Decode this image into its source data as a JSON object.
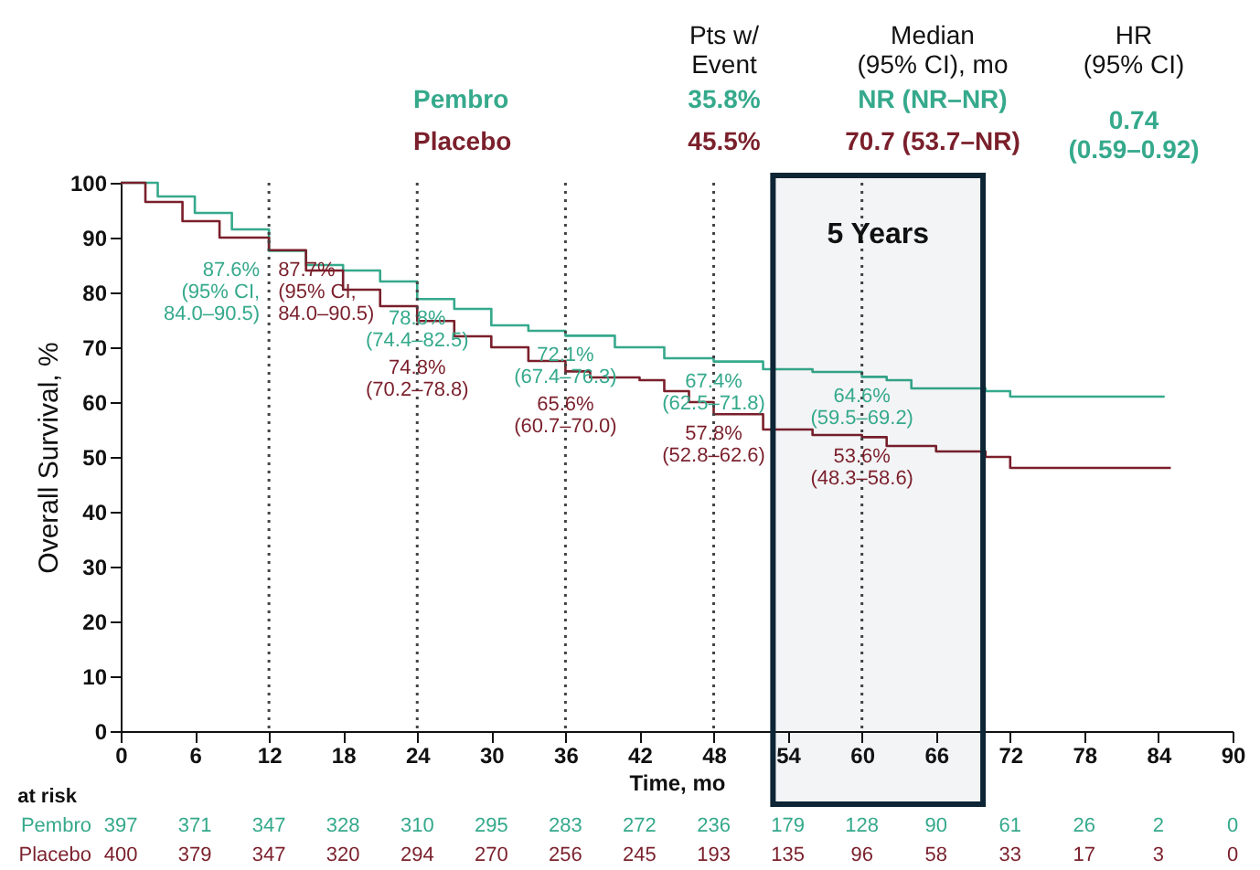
{
  "chart_data": {
    "type": "step",
    "xlabel": "Time, mo",
    "ylabel": "Overall Survival, %",
    "xlim": [
      0,
      90
    ],
    "xticks": [
      0,
      6,
      12,
      18,
      24,
      30,
      36,
      42,
      48,
      54,
      60,
      66,
      72,
      78,
      84,
      90
    ],
    "ylim": [
      0,
      100
    ],
    "yticks": [
      0,
      10,
      20,
      30,
      40,
      50,
      60,
      70,
      80,
      90,
      100
    ],
    "grid": false,
    "marker": "none",
    "line_style": "solid",
    "series": [
      {
        "name": "Pembro",
        "color": "#35a98c",
        "x": [
          0,
          3,
          6,
          9,
          12,
          15,
          18,
          21,
          24,
          27,
          30,
          33,
          36,
          40,
          44,
          48,
          52,
          56,
          60,
          62,
          64,
          70,
          72,
          84.5
        ],
        "values": [
          100,
          97.5,
          94.5,
          91.5,
          87.6,
          85,
          84,
          82,
          78.8,
          77,
          74,
          73,
          72.1,
          70,
          68,
          67.4,
          66,
          65.5,
          64.6,
          64,
          62.5,
          62,
          61,
          61
        ],
        "value_labels": [
          null,
          null,
          null,
          null,
          "87.6%\n(95% CI,\n84.0–90.5)",
          null,
          null,
          null,
          "78.8%\n(74.4–82.5)",
          null,
          null,
          null,
          "72.1%\n(67.4–76.3)",
          null,
          null,
          "67.4%\n(62.5–71.8)",
          null,
          null,
          "64.6%\n(59.5–69.2)",
          null,
          null,
          null,
          null,
          null
        ]
      },
      {
        "name": "Placebo",
        "color": "#7a1f2b",
        "x": [
          0,
          2,
          5,
          8,
          12,
          15,
          18,
          21,
          24,
          27,
          30,
          33,
          36,
          38,
          42,
          44,
          46,
          48,
          52,
          56,
          60,
          62,
          66,
          70,
          72,
          85
        ],
        "values": [
          100,
          96.5,
          93,
          90,
          87.7,
          84,
          80.5,
          77.5,
          74.8,
          72,
          70,
          67.5,
          65.6,
          64.5,
          64,
          62,
          60,
          57.8,
          55,
          54,
          53.6,
          52,
          51,
          50,
          48,
          48
        ],
        "value_labels": [
          null,
          null,
          null,
          null,
          "87.7%\n(95% CI,\n84.0–90.5)",
          null,
          null,
          null,
          "74.8%\n(70.2–78.8)",
          null,
          null,
          null,
          "65.6%\n(60.7–70.0)",
          null,
          null,
          null,
          null,
          "57.8%\n(52.8–62.6)",
          null,
          null,
          "53.6%\n(48.3–58.6)",
          null,
          null,
          null,
          null,
          null
        ]
      }
    ],
    "ref_lines": [
      {
        "axis": "x",
        "value": 12,
        "line_style": "dotted"
      },
      {
        "axis": "x",
        "value": 24,
        "line_style": "dotted"
      },
      {
        "axis": "x",
        "value": 36,
        "line_style": "dotted"
      },
      {
        "axis": "x",
        "value": 48,
        "line_style": "dotted"
      },
      {
        "axis": "x",
        "value": 60,
        "line_style": "dotted"
      }
    ],
    "bands": [
      {
        "axis": "x",
        "from": 52.8,
        "to": 69.8,
        "label": "5 Years",
        "color": "#0d2535"
      }
    ],
    "annotations": [
      "Pts w/\nEvent",
      "Median\n(95% CI), mo",
      "HR\n(95% CI)",
      "35.8%",
      "NR (NR–NR)",
      "0.74\n(0.59–0.92)",
      "45.5%",
      "70.7 (53.7–NR)",
      "at risk",
      "397",
      "371",
      "347",
      "328",
      "310",
      "295",
      "283",
      "272",
      "236",
      "179",
      "128",
      "90",
      "61",
      "26",
      "2",
      "0",
      "400",
      "379",
      "347",
      "320",
      "294",
      "270",
      "256",
      "245",
      "193",
      "135",
      "96",
      "58",
      "33",
      "17",
      "3",
      "0"
    ]
  }
}
